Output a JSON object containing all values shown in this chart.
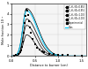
{
  "title": "",
  "xlabel": "Distance to burner (cm)",
  "ylabel": "Mole fraction 10⁻³",
  "xlim": [
    0.0,
    1.6
  ],
  "ylim": [
    0,
    5
  ],
  "yticks": [
    0,
    1,
    2,
    3,
    4,
    5
  ],
  "xticks": [
    0.0,
    0.5,
    1.0,
    1.5
  ],
  "legend_entries": [
    "C₂H₄ (Φ=0.85)",
    "C₂H₄ (Φ=0.95)",
    "C₂H₄ (Φ=1.00)",
    "C₂H₄ (Φ=2.00)",
    "Experimental",
    "Dias"
  ],
  "background_color": "#f5f5f5",
  "grid_color": "#cccccc",
  "dias_color": "#00ccff",
  "exp_color": "#333333"
}
